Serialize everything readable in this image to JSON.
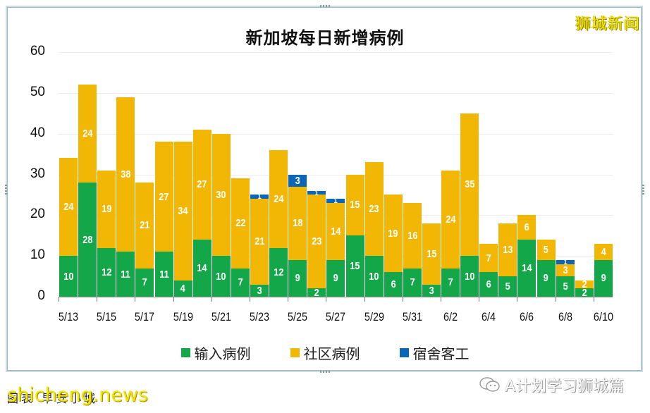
{
  "title": "新加坡每日新增病例",
  "brand": "狮城新闻",
  "footer": {
    "note": "图表  早安小城",
    "watermark": "shicheng.news",
    "wechat_label": "A计划学习狮城篇"
  },
  "colors": {
    "imported": "#13a74a",
    "community": "#f2b705",
    "dormitory": "#0c66b8"
  },
  "legend": [
    {
      "label": "输入病例",
      "color": "#13a74a"
    },
    {
      "label": "社区病例",
      "color": "#f2b705"
    },
    {
      "label": "宿舍客工",
      "color": "#0c66b8"
    }
  ],
  "chart_data": {
    "type": "bar",
    "stacked": true,
    "title": "新加坡每日新增病例",
    "xlabel": "",
    "ylabel": "",
    "ylim": [
      0,
      60
    ],
    "yticks": [
      0,
      10,
      20,
      30,
      40,
      50,
      60
    ],
    "grid": true,
    "legend_position": "bottom",
    "categories": [
      "5/13",
      "5/14",
      "5/15",
      "5/16",
      "5/17",
      "5/18",
      "5/19",
      "5/20",
      "5/21",
      "5/22",
      "5/23",
      "5/24",
      "5/25",
      "5/26",
      "5/27",
      "5/28",
      "5/29",
      "5/30",
      "5/31",
      "6/1",
      "6/2",
      "6/3",
      "6/4",
      "6/5",
      "6/6",
      "6/7",
      "6/8",
      "6/9",
      "6/10"
    ],
    "xtick_labels": [
      "5/13",
      "5/15",
      "5/17",
      "5/19",
      "5/21",
      "5/23",
      "5/25",
      "5/27",
      "5/29",
      "5/31",
      "6/2",
      "6/4",
      "6/6",
      "6/8",
      "6/10"
    ],
    "series": [
      {
        "name": "输入病例",
        "color": "#13a74a",
        "values": [
          10,
          28,
          12,
          11,
          7,
          11,
          4,
          14,
          10,
          7,
          3,
          12,
          9,
          2,
          9,
          15,
          10,
          6,
          7,
          3,
          7,
          10,
          6,
          5,
          14,
          9,
          5,
          2,
          9
        ]
      },
      {
        "name": "社区病例",
        "color": "#f2b705",
        "values": [
          24,
          24,
          19,
          38,
          21,
          27,
          34,
          27,
          30,
          22,
          21,
          24,
          18,
          23,
          14,
          15,
          23,
          19,
          16,
          15,
          24,
          35,
          7,
          13,
          6,
          5,
          3,
          2,
          4
        ]
      },
      {
        "name": "宿舍客工",
        "color": "#0c66b8",
        "values": [
          0,
          0,
          0,
          0,
          0,
          0,
          0,
          0,
          0,
          0,
          1,
          0,
          3,
          1,
          1,
          0,
          0,
          0,
          0,
          0,
          0,
          0,
          0,
          0,
          0,
          0,
          1,
          0,
          0
        ]
      }
    ]
  }
}
